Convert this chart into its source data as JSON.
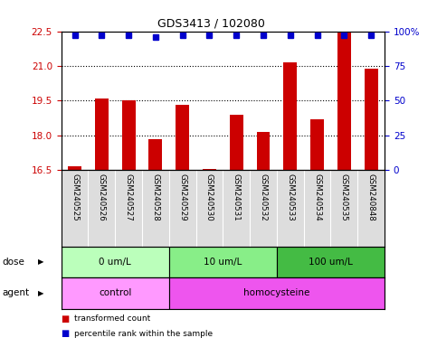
{
  "title": "GDS3413 / 102080",
  "samples": [
    "GSM240525",
    "GSM240526",
    "GSM240527",
    "GSM240528",
    "GSM240529",
    "GSM240530",
    "GSM240531",
    "GSM240532",
    "GSM240533",
    "GSM240534",
    "GSM240535",
    "GSM240848"
  ],
  "red_values": [
    16.65,
    19.6,
    19.5,
    17.85,
    19.3,
    16.55,
    18.9,
    18.15,
    21.15,
    18.7,
    22.45,
    20.9
  ],
  "blue_values": [
    97,
    97,
    97,
    96,
    97,
    97,
    97,
    97,
    97,
    97,
    97,
    97
  ],
  "ylim_left": [
    16.5,
    22.5
  ],
  "ylim_right": [
    0,
    100
  ],
  "yticks_left": [
    16.5,
    18.0,
    19.5,
    21.0,
    22.5
  ],
  "yticks_right": [
    0,
    25,
    50,
    75,
    100
  ],
  "ytick_labels_right": [
    "0",
    "25",
    "50",
    "75",
    "100%"
  ],
  "bar_color": "#cc0000",
  "dot_color": "#0000cc",
  "dose_groups": [
    {
      "label": "0 um/L",
      "start": 0,
      "end": 4,
      "color": "#bbffbb"
    },
    {
      "label": "10 um/L",
      "start": 4,
      "end": 8,
      "color": "#88ee88"
    },
    {
      "label": "100 um/L",
      "start": 8,
      "end": 12,
      "color": "#44bb44"
    }
  ],
  "agent_groups": [
    {
      "label": "control",
      "start": 0,
      "end": 4,
      "color": "#ff99ff"
    },
    {
      "label": "homocysteine",
      "start": 4,
      "end": 12,
      "color": "#ee55ee"
    }
  ],
  "dose_label": "dose",
  "agent_label": "agent",
  "legend_red": "transformed count",
  "legend_blue": "percentile rank within the sample",
  "sample_bg": "#dddddd",
  "plot_bg": "#ffffff",
  "gridline_ticks": [
    18.0,
    19.5,
    21.0
  ]
}
